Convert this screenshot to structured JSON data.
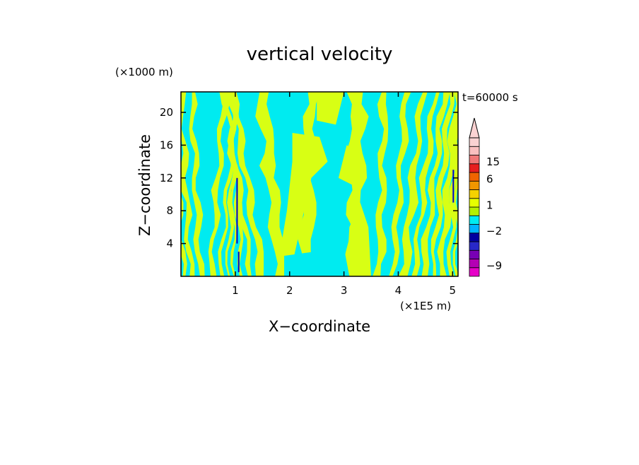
{
  "chart_data": {
    "type": "heatmap",
    "title": "vertical velocity",
    "xlabel": "X−coordinate",
    "ylabel": "Z−coordinate",
    "x_unit": "(×1E5 m)",
    "y_unit": "(×1000 m)",
    "time_label": "t=60000 s",
    "xlim": [
      0,
      5.1
    ],
    "ylim": [
      0,
      22.5
    ],
    "x_ticks": [
      1,
      2,
      3,
      4,
      5
    ],
    "y_ticks": [
      4,
      8,
      12,
      16,
      20
    ],
    "colorbar": {
      "levels": [
        -10,
        -9,
        -7,
        -5,
        -3,
        -2,
        -1,
        0,
        1,
        2,
        3,
        6,
        10,
        15,
        20,
        25
      ],
      "colors": [
        "#e600c8",
        "#b400b4",
        "#7800b4",
        "#2828c8",
        "#0000a0",
        "#00b4ff",
        "#00ebf0",
        "#b4f000",
        "#e6ff00",
        "#f5d200",
        "#f09600",
        "#f06400",
        "#e61e1e",
        "#f07878",
        "#fac0c0",
        "#fad2d2"
      ],
      "labels": [
        {
          "value": 15,
          "text": "15"
        },
        {
          "value": 6,
          "text": "6"
        },
        {
          "value": 1,
          "text": "1"
        },
        {
          "value": -2,
          "text": "−2"
        },
        {
          "value": -9,
          "text": "−9"
        }
      ],
      "extend": "max"
    },
    "field_colors": {
      "positive": "#d8ff14",
      "negative": "#00ebf0",
      "strong_negative": "#0000c8"
    }
  }
}
